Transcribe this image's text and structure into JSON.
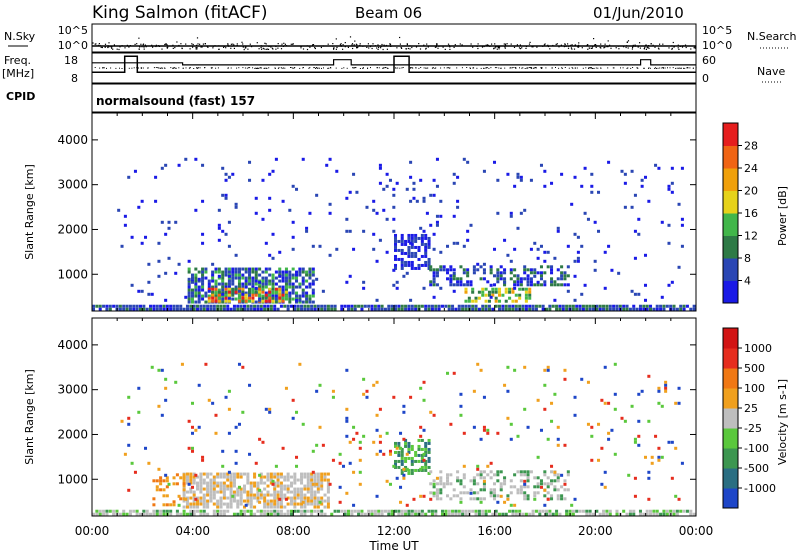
{
  "header": {
    "station": "King Salmon (fitACF)",
    "beam": "Beam 06",
    "date": "01/Jun/2010"
  },
  "status_panel": {
    "nsky_label": "N.Sky",
    "nsky_ticks": [
      "10^5",
      "10^0"
    ],
    "nsearch_label": "N.Search",
    "nsearch_ticks": [
      "10^5",
      "10^0"
    ],
    "freq_label": "Freq.",
    "freq_unit": "[MHz]",
    "freq_ticks": [
      "18",
      "8"
    ],
    "nave_label": "Nave",
    "nave_ticks": [
      "60",
      "0"
    ],
    "cpid_label": "CPID",
    "cpid_value": "normalsound (fast) 157",
    "freq_steps": [
      [
        0.0,
        0.34
      ],
      [
        1.3,
        0.34
      ],
      [
        1.3,
        0.95
      ],
      [
        1.8,
        0.95
      ],
      [
        1.8,
        0.34
      ],
      [
        12.0,
        0.34
      ],
      [
        12.0,
        0.95
      ],
      [
        12.6,
        0.95
      ],
      [
        12.6,
        0.34
      ],
      [
        24.0,
        0.34
      ]
    ],
    "nave_steps": [
      [
        0.0,
        0.7
      ],
      [
        3.6,
        0.7
      ],
      [
        3.6,
        0.62
      ],
      [
        9.6,
        0.62
      ],
      [
        9.6,
        0.82
      ],
      [
        10.3,
        0.82
      ],
      [
        10.3,
        0.62
      ],
      [
        21.8,
        0.62
      ],
      [
        21.8,
        0.82
      ],
      [
        22.2,
        0.82
      ],
      [
        22.2,
        0.62
      ],
      [
        24.0,
        0.62
      ]
    ]
  },
  "chart_data": [
    {
      "type": "heatmap",
      "title": "",
      "xlabel": "Time UT",
      "ylabel": "Slant Range [km]",
      "xlim": [
        0,
        24
      ],
      "ylim": [
        180,
        4600
      ],
      "x_ticks": [
        "00:00",
        "04:00",
        "08:00",
        "12:00",
        "16:00",
        "20:00",
        "00:00"
      ],
      "y_ticks": [
        1000,
        2000,
        3000,
        4000
      ],
      "colorbar": {
        "label": "Power [dB]",
        "ticks": [
          "4",
          "8",
          "12",
          "16",
          "20",
          "24",
          "28"
        ],
        "colors": [
          "#1a1ae6",
          "#2a46b4",
          "#2e7a46",
          "#41b64a",
          "#e6d21a",
          "#f0a00a",
          "#f06414",
          "#e61e1e"
        ]
      },
      "regions": [
        {
          "t0": 0.0,
          "t1": 24.0,
          "r0": 180,
          "r1": 320,
          "density": 0.9,
          "palette": [
            1,
            1,
            0,
            2
          ]
        },
        {
          "t0": 3.8,
          "t1": 8.8,
          "r0": 350,
          "r1": 1150,
          "density": 0.75,
          "palette": [
            0,
            1,
            1,
            2,
            3
          ]
        },
        {
          "t0": 4.6,
          "t1": 7.8,
          "r0": 350,
          "r1": 700,
          "density": 0.8,
          "palette": [
            3,
            4,
            5,
            6,
            7,
            2
          ]
        },
        {
          "t0": 12.0,
          "t1": 13.4,
          "r0": 1100,
          "r1": 1900,
          "density": 0.6,
          "palette": [
            0,
            1,
            0
          ]
        },
        {
          "t0": 13.4,
          "t1": 19.0,
          "r0": 700,
          "r1": 1200,
          "density": 0.45,
          "palette": [
            0,
            1,
            2
          ]
        },
        {
          "t0": 14.8,
          "t1": 17.5,
          "r0": 350,
          "r1": 700,
          "density": 0.5,
          "palette": [
            2,
            3,
            4,
            5
          ]
        },
        {
          "t0": 1.0,
          "t1": 23.5,
          "r0": 400,
          "r1": 3600,
          "density": 0.035,
          "palette": [
            0,
            1
          ]
        }
      ]
    },
    {
      "type": "heatmap",
      "title": "",
      "xlabel": "Time UT",
      "ylabel": "Slant Range [km]",
      "xlim": [
        0,
        24
      ],
      "ylim": [
        180,
        4600
      ],
      "x_ticks": [
        "00:00",
        "04:00",
        "08:00",
        "12:00",
        "16:00",
        "20:00",
        "00:00"
      ],
      "y_ticks": [
        1000,
        2000,
        3000,
        4000
      ],
      "colorbar": {
        "label": "Velocity [m s-1]",
        "ticks": [
          "1000",
          "500",
          "100",
          "25",
          "-25",
          "-100",
          "-500",
          "-1000"
        ],
        "colors": [
          "#1e46c8",
          "#2a6e82",
          "#3c9650",
          "#5ac83c",
          "#bebebe",
          "#f0a01e",
          "#f07814",
          "#e62d1e",
          "#d21414"
        ]
      },
      "regions": [
        {
          "t0": 0.0,
          "t1": 24.0,
          "r0": 180,
          "r1": 320,
          "density": 0.8,
          "palette": [
            4,
            3,
            2,
            4
          ]
        },
        {
          "t0": 3.6,
          "t1": 9.4,
          "r0": 350,
          "r1": 1150,
          "density": 0.75,
          "palette": [
            4,
            4,
            4,
            5
          ]
        },
        {
          "t0": 12.0,
          "t1": 13.4,
          "r0": 1100,
          "r1": 1900,
          "density": 0.55,
          "palette": [
            3,
            2,
            1
          ]
        },
        {
          "t0": 13.4,
          "t1": 19.0,
          "r0": 500,
          "r1": 1200,
          "density": 0.4,
          "palette": [
            4,
            4,
            2
          ]
        },
        {
          "t0": 2.4,
          "t1": 3.8,
          "r0": 400,
          "r1": 1200,
          "density": 0.35,
          "palette": [
            5,
            6
          ]
        },
        {
          "t0": 1.0,
          "t1": 23.5,
          "r0": 400,
          "r1": 3600,
          "density": 0.035,
          "palette": [
            0,
            3,
            5,
            7
          ]
        }
      ]
    }
  ]
}
